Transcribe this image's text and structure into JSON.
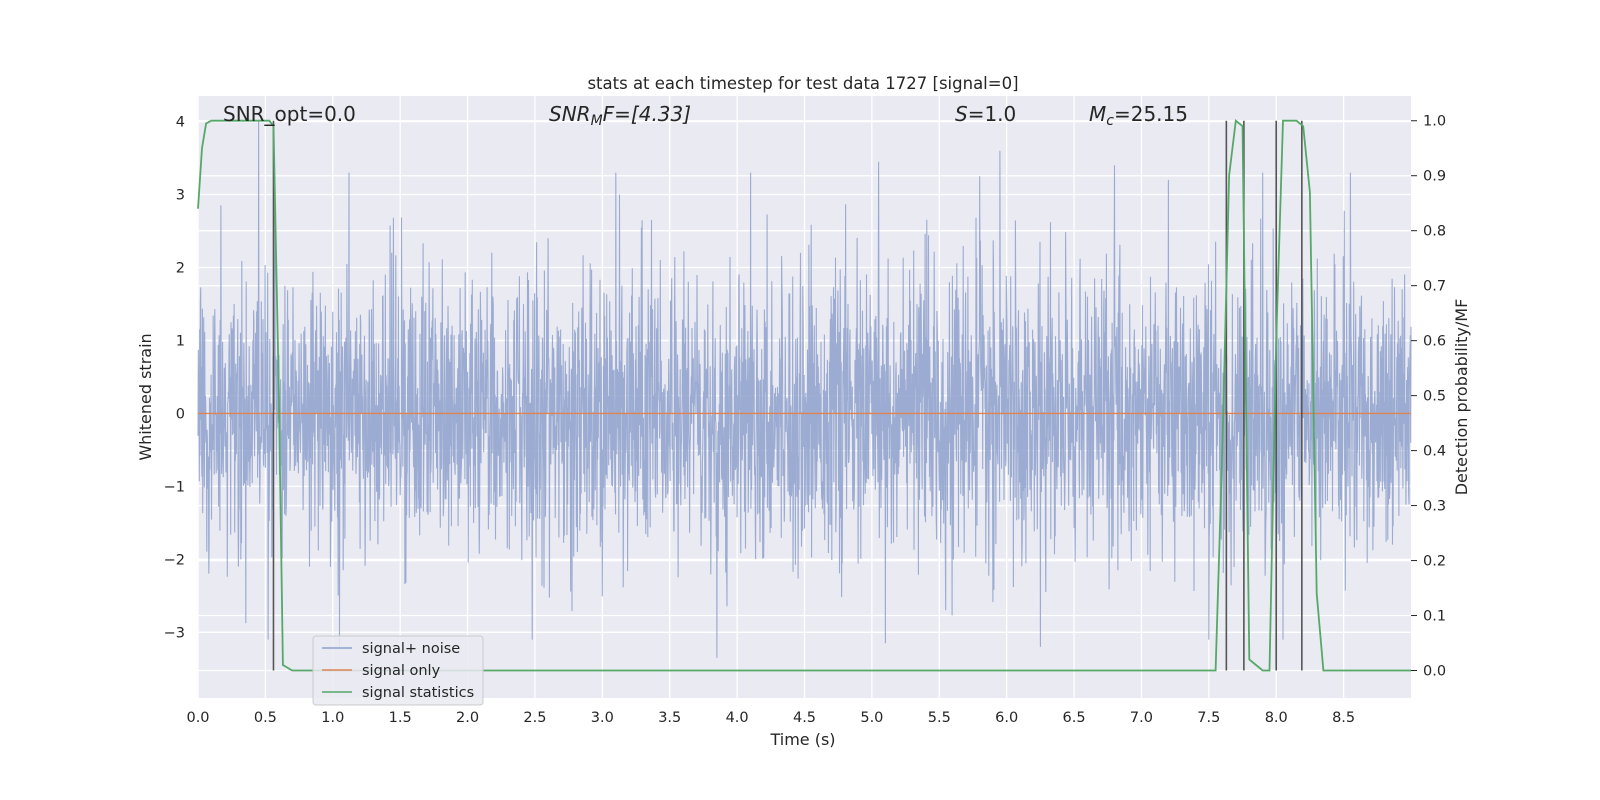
{
  "chart_data": {
    "type": "line",
    "title": "stats at each timestep for test data 1727 [signal=0]",
    "xlabel": "Time (s)",
    "ylabel_left": "Whitened strain",
    "ylabel_right": "Detection probability/MF",
    "xlim": [
      0,
      9.0
    ],
    "ylim_left": [
      -3.9,
      4.35
    ],
    "ylim_right": [
      -0.05,
      1.045
    ],
    "xticks": [
      0.0,
      0.5,
      1.0,
      1.5,
      2.0,
      2.5,
      3.0,
      3.5,
      4.0,
      4.5,
      5.0,
      5.5,
      6.0,
      6.5,
      7.0,
      7.5,
      8.0,
      8.5
    ],
    "xtick_labels": [
      "0.0",
      "0.5",
      "1.0",
      "1.5",
      "2.0",
      "2.5",
      "3.0",
      "3.5",
      "4.0",
      "4.5",
      "5.0",
      "5.5",
      "6.0",
      "6.5",
      "7.0",
      "7.5",
      "8.0",
      "8.5"
    ],
    "yticks_left": [
      -3,
      -2,
      -1,
      0,
      1,
      2,
      3,
      4
    ],
    "ytick_labels_left": [
      "−3",
      "−2",
      "−1",
      "0",
      "1",
      "2",
      "3",
      "4"
    ],
    "yticks_right": [
      0.0,
      0.1,
      0.2,
      0.3,
      0.4,
      0.5,
      0.6,
      0.7,
      0.8,
      0.9,
      1.0
    ],
    "ytick_labels_right": [
      "0.0",
      "0.1",
      "0.2",
      "0.3",
      "0.4",
      "0.5",
      "0.6",
      "0.7",
      "0.8",
      "0.9",
      "1.0"
    ],
    "grid": true,
    "legend_placement": "lower-left",
    "annotations": {
      "snr_opt": "SNR_opt=0.0",
      "snr_mf_base": "SNR",
      "snr_mf_sub": "M",
      "snr_mf_rest": "F=[4.33]",
      "s_sym": "S",
      "s_rest": "=1.0",
      "mc_sym": "M",
      "mc_sub": "c",
      "mc_rest": "=25.15"
    },
    "series": [
      {
        "name": "signal+ noise",
        "axis": "left",
        "color": "#8da0cb",
        "description_values": {
          "envelope_typical": [
            -2.0,
            2.0
          ],
          "peaks": [
            [
              0.45,
              4.0
            ],
            [
              0.57,
              3.25
            ],
            [
              0.52,
              -3.1
            ],
            [
              1.12,
              3.3
            ],
            [
              1.05,
              -3.2
            ],
            [
              2.48,
              -3.1
            ],
            [
              3.1,
              3.3
            ],
            [
              3.85,
              -3.35
            ],
            [
              4.1,
              3.3
            ],
            [
              5.05,
              3.45
            ],
            [
              5.1,
              -3.15
            ],
            [
              5.8,
              3.25
            ],
            [
              5.95,
              3.6
            ],
            [
              6.25,
              -3.2
            ],
            [
              6.8,
              3.4
            ],
            [
              7.2,
              3.2
            ],
            [
              7.5,
              -3.1
            ],
            [
              7.9,
              3.3
            ],
            [
              8.05,
              -3.1
            ],
            [
              8.55,
              3.3
            ]
          ]
        }
      },
      {
        "name": "signal only",
        "axis": "left",
        "color": "#dd8452",
        "x": [
          0.0,
          9.0
        ],
        "y": [
          0.0,
          0.0
        ]
      },
      {
        "name": "signal statistics",
        "axis": "right",
        "color": "#55a868",
        "x": [
          0.0,
          0.03,
          0.06,
          0.1,
          0.2,
          0.3,
          0.4,
          0.5,
          0.53,
          0.56,
          0.6,
          0.63,
          0.7,
          1.0,
          2.0,
          3.0,
          4.0,
          5.0,
          6.0,
          7.0,
          7.5,
          7.55,
          7.6,
          7.65,
          7.7,
          7.75,
          7.8,
          7.85,
          7.9,
          7.95,
          8.0,
          8.05,
          8.1,
          8.15,
          8.2,
          8.25,
          8.3,
          8.35,
          8.4,
          8.5,
          9.0
        ],
        "y": [
          0.84,
          0.95,
          0.995,
          1.0,
          1.0,
          1.0,
          1.0,
          1.0,
          1.0,
          0.99,
          0.5,
          0.01,
          0.0,
          0.0,
          0.0,
          0.0,
          0.0,
          0.0,
          0.0,
          0.0,
          0.0,
          0.0,
          0.4,
          0.9,
          1.0,
          0.99,
          0.02,
          0.01,
          0.0,
          0.0,
          0.6,
          1.0,
          1.0,
          1.0,
          0.99,
          0.87,
          0.14,
          0.0,
          0.0,
          0.0,
          0.0
        ]
      }
    ],
    "vertical_markers": {
      "color": "#555555",
      "x": [
        0.56,
        7.63,
        7.76,
        8.0,
        8.19
      ],
      "y_range_right": [
        0.0,
        1.0
      ]
    }
  }
}
